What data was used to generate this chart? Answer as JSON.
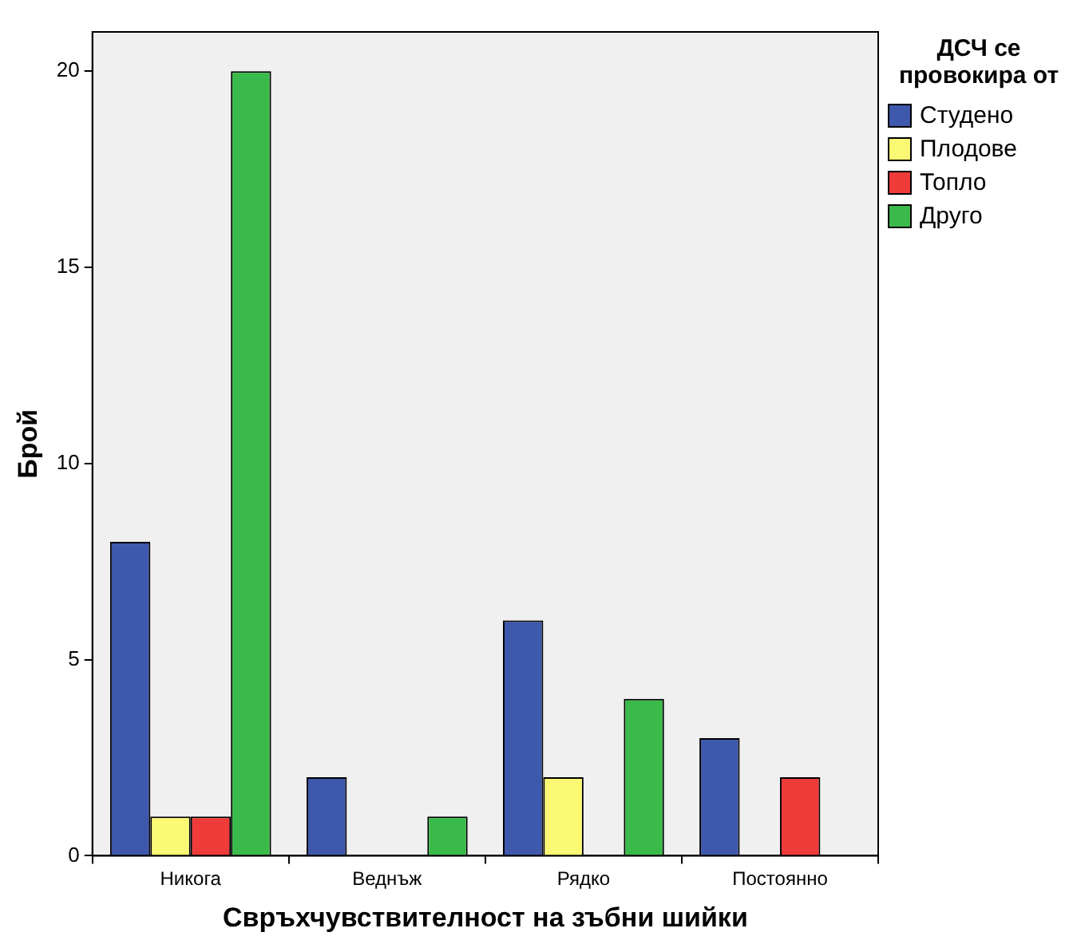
{
  "chart_data": {
    "type": "bar",
    "xlabel": "Свръхчувствителност на зъбни шийки",
    "ylabel": "Брой",
    "legend_title": "ДСЧ се провокира от",
    "categories": [
      "Никога",
      "Веднъж",
      "Рядко",
      "Постоянно"
    ],
    "series": [
      {
        "name": "Студено",
        "color": "#3e58ac",
        "values": [
          8,
          2,
          6,
          3
        ]
      },
      {
        "name": "Плодове",
        "color": "#fbf873",
        "values": [
          1,
          0,
          2,
          0
        ]
      },
      {
        "name": "Топло",
        "color": "#ef3b39",
        "values": [
          1,
          0,
          0,
          2
        ]
      },
      {
        "name": "Друго",
        "color": "#3aba4a",
        "values": [
          20,
          1,
          4,
          0
        ]
      }
    ],
    "ylim": [
      0,
      21
    ],
    "yticks": [
      0,
      5,
      10,
      15,
      20
    ],
    "grid": false,
    "legend": "top right"
  }
}
